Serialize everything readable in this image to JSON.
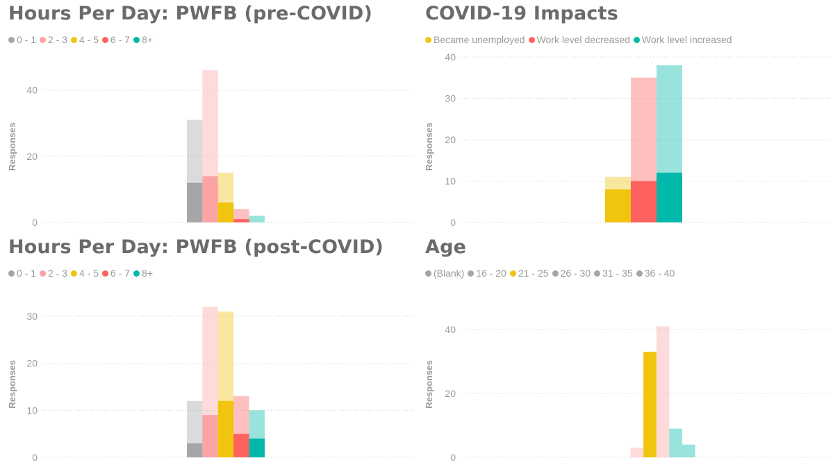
{
  "charts": [
    {
      "title": "Hours Per Day: PWFB (pre-COVID)",
      "legend": [
        {
          "label": "0 - 1",
          "color": "#a6a6a6"
        },
        {
          "label": "2 - 3",
          "color": "#fca4a4"
        },
        {
          "label": "4 - 5",
          "color": "#f0c40f"
        },
        {
          "label": "6 - 7",
          "color": "#fd625e"
        },
        {
          "label": "8+",
          "color": "#01b8aa"
        }
      ]
    },
    {
      "title": "COVID-19 Impacts",
      "legend": [
        {
          "label": "Became unemployed",
          "color": "#f0c40f"
        },
        {
          "label": "Work level decreased",
          "color": "#fd625e"
        },
        {
          "label": "Work level increased",
          "color": "#01b8aa"
        }
      ]
    },
    {
      "title": "Hours Per Day: PWFB (post-COVID)",
      "legend": [
        {
          "label": "0 - 1",
          "color": "#a6a6a6"
        },
        {
          "label": "2 - 3",
          "color": "#fca4a4"
        },
        {
          "label": "4 - 5",
          "color": "#f0c40f"
        },
        {
          "label": "6 - 7",
          "color": "#fd625e"
        },
        {
          "label": "8+",
          "color": "#01b8aa"
        }
      ]
    },
    {
      "title": "Age",
      "legend": [
        {
          "label": "(Blank)",
          "color": "#a6a6a6"
        },
        {
          "label": "16 - 20",
          "color": "#a6a6a6"
        },
        {
          "label": "21 - 25",
          "color": "#f0c40f"
        },
        {
          "label": "26 - 30",
          "color": "#a6a6a6"
        },
        {
          "label": "31 - 35",
          "color": "#a6a6a6"
        },
        {
          "label": "36 - 40",
          "color": "#a6a6a6"
        }
      ]
    }
  ],
  "chart_data": [
    {
      "type": "bar",
      "title": "Hours Per Day: PWFB (pre-COVID)",
      "ylabel": "Responses",
      "ylim": [
        0,
        50
      ],
      "yticks": [
        0,
        20,
        40
      ],
      "categories": [
        "0 - 1",
        "2 - 3",
        "4 - 5",
        "6 - 7",
        "8+"
      ],
      "series": [
        {
          "name": "total",
          "values": [
            31,
            46,
            15,
            4,
            2
          ]
        },
        {
          "name": "highlighted",
          "values": [
            12,
            14,
            6,
            1,
            0
          ]
        }
      ],
      "colors": [
        "#a6a6a6",
        "#fca4a4",
        "#f0c40f",
        "#fd625e",
        "#01b8aa"
      ],
      "grid": true
    },
    {
      "type": "bar",
      "title": "COVID-19 Impacts",
      "ylabel": "Responses",
      "ylim": [
        0,
        40
      ],
      "yticks": [
        0,
        10,
        20,
        30,
        40
      ],
      "categories": [
        "Became unemployed",
        "Work level decreased",
        "Work level increased"
      ],
      "series": [
        {
          "name": "total",
          "values": [
            11,
            35,
            38
          ]
        },
        {
          "name": "highlighted",
          "values": [
            8,
            10,
            12
          ]
        }
      ],
      "colors": [
        "#f0c40f",
        "#fd625e",
        "#01b8aa"
      ],
      "grid": true
    },
    {
      "type": "bar",
      "title": "Hours Per Day: PWFB (post-COVID)",
      "ylabel": "Responses",
      "ylim": [
        0,
        34
      ],
      "yticks": [
        0,
        10,
        20,
        30
      ],
      "categories": [
        "0 - 1",
        "2 - 3",
        "4 - 5",
        "6 - 7",
        "8+"
      ],
      "series": [
        {
          "name": "total",
          "values": [
            12,
            32,
            31,
            13,
            10
          ]
        },
        {
          "name": "highlighted",
          "values": [
            3,
            9,
            12,
            5,
            4
          ]
        }
      ],
      "colors": [
        "#a6a6a6",
        "#fca4a4",
        "#f0c40f",
        "#fd625e",
        "#01b8aa"
      ],
      "grid": true
    },
    {
      "type": "bar",
      "title": "Age",
      "ylabel": "Responses",
      "ylim": [
        0,
        50
      ],
      "yticks": [
        0,
        20,
        40
      ],
      "categories": [
        "(Blank)",
        "16 - 20",
        "21 - 25",
        "26 - 30",
        "31 - 35",
        "36 - 40"
      ],
      "series": [
        {
          "name": "total",
          "values": [
            0,
            3,
            33,
            41,
            9,
            4
          ]
        },
        {
          "name": "highlighted",
          "values": [
            0,
            0,
            33,
            0,
            0,
            0
          ]
        }
      ],
      "colors": [
        "#a6a6a6",
        "#fca4a4",
        "#f0c40f",
        "#fca4a4",
        "#01b8aa",
        "#01b8aa"
      ],
      "grid": true
    }
  ]
}
